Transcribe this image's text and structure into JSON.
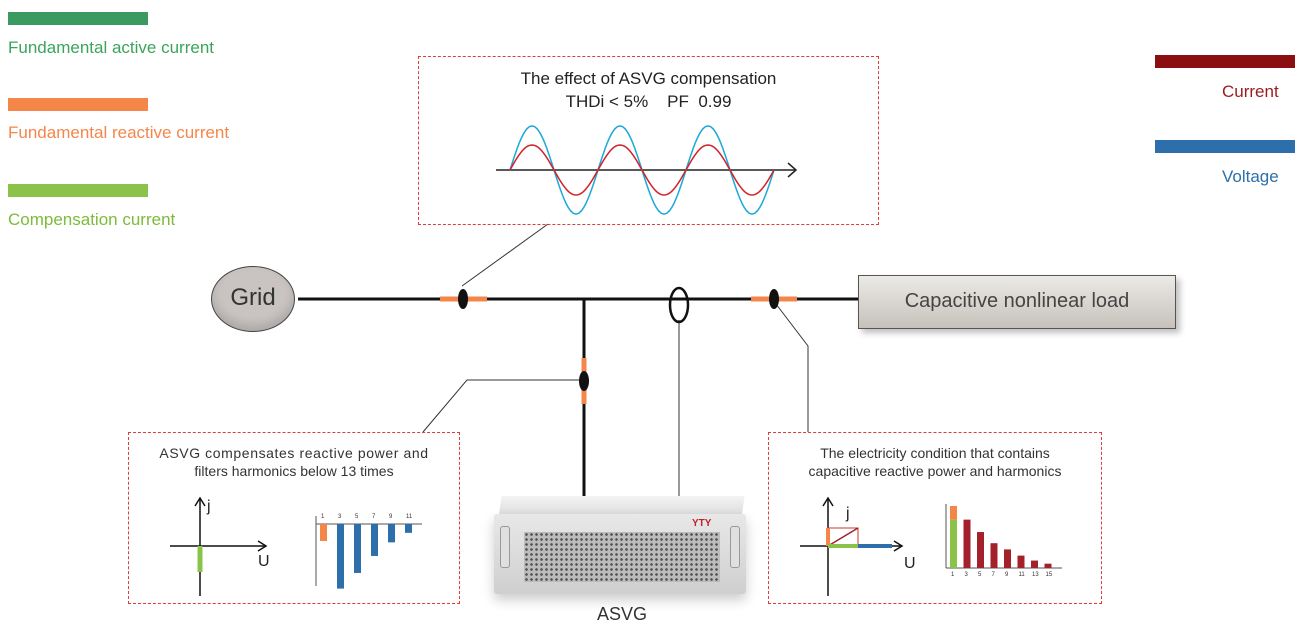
{
  "legend": {
    "active": {
      "label": "Fundamental active current",
      "color": "#3a9a5f"
    },
    "reactive": {
      "label": "Fundamental reactive current",
      "color": "#f5864a"
    },
    "compensation": {
      "label": "Compensation current",
      "color": "#8bc34a"
    },
    "current": {
      "label": "Current",
      "color": "#8b0e10"
    },
    "voltage": {
      "label": "Voltage",
      "color": "#2c6faa"
    }
  },
  "effect_box": {
    "title": "The effect of ASVG compensation",
    "metrics": "THDi < 5%    PF  0.99"
  },
  "grid_label": "Grid",
  "load_label": "Capacitive nonlinear load",
  "device_label": "ASVG",
  "device_brand": "YTY",
  "left_box": {
    "title_line1": "ASVG compensates reactive power and",
    "title_line2": "filters harmonics below 13 times",
    "axis_j": "j",
    "axis_u": "U",
    "harmonic_ticks": [
      "1",
      "3",
      "5",
      "7",
      "9",
      "11"
    ]
  },
  "right_box": {
    "title_line1": "The electricity condition that contains",
    "title_line2": "capacitive reactive power and harmonics",
    "axis_j": "j",
    "axis_u": "U",
    "harmonic_ticks": [
      "1",
      "3",
      "5",
      "7",
      "9",
      "11",
      "13",
      "15"
    ]
  },
  "chart_data": [
    {
      "type": "bar",
      "title": "",
      "categories": [
        "1",
        "3",
        "5",
        "7",
        "9",
        "11"
      ],
      "values": [
        -0.25,
        -0.95,
        -0.72,
        -0.47,
        -0.27,
        -0.13
      ],
      "colors": [
        "#f5864a",
        "#2c6faa",
        "#2c6faa",
        "#2c6faa",
        "#2c6faa",
        "#2c6faa"
      ]
    },
    {
      "type": "bar",
      "title": "",
      "categories": [
        "1",
        "3",
        "5",
        "7",
        "9",
        "11",
        "13",
        "15"
      ],
      "values": [
        1.0,
        0.78,
        0.58,
        0.4,
        0.3,
        0.2,
        0.12,
        0.07
      ],
      "colors": [
        "#f5864a",
        "#a3212a",
        "#a3212a",
        "#a3212a",
        "#a3212a",
        "#a3212a",
        "#a3212a",
        "#a3212a"
      ],
      "stacked_first": {
        "lower": "#8bc34a",
        "upper": "#f5864a",
        "lower_value": 0.78
      }
    }
  ]
}
